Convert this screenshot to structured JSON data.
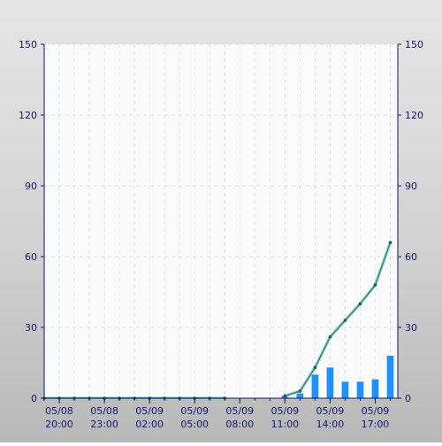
{
  "chart_data": {
    "type": "bar+line",
    "x_tick_labels": [
      {
        "date": "05/08",
        "time": "20:00"
      },
      {
        "date": "05/08",
        "time": "23:00"
      },
      {
        "date": "05/09",
        "time": "02:00"
      },
      {
        "date": "05/09",
        "time": "05:00"
      },
      {
        "date": "05/09",
        "time": "08:00"
      },
      {
        "date": "05/09",
        "time": "11:00"
      },
      {
        "date": "05/09",
        "time": "14:00"
      },
      {
        "date": "05/09",
        "time": "17:00"
      }
    ],
    "x_tick_hours": [
      1,
      4,
      7,
      10,
      13,
      16,
      19,
      22
    ],
    "x_start": "05/08 19:00",
    "x_range": [
      0,
      23.5
    ],
    "ylim": [
      0,
      150
    ],
    "y_ticks": [
      0,
      30,
      60,
      90,
      120,
      150
    ],
    "grid": true,
    "bars": {
      "x": [
        16,
        17,
        18,
        19,
        20,
        21,
        22,
        23
      ],
      "values": [
        1,
        2,
        10,
        13,
        7,
        7,
        8,
        18
      ],
      "color": "#1e90ff"
    },
    "line": {
      "x": [
        0,
        1,
        2,
        3,
        4,
        5,
        6,
        7,
        8,
        9,
        10,
        11,
        12,
        16,
        17,
        18,
        19,
        20,
        21,
        22,
        23
      ],
      "values": [
        0,
        0,
        0,
        0,
        0,
        0,
        0,
        0,
        0,
        0,
        0,
        0,
        0,
        1,
        3,
        13,
        26,
        33,
        40,
        48,
        66
      ],
      "color": "#2f8f86"
    }
  }
}
